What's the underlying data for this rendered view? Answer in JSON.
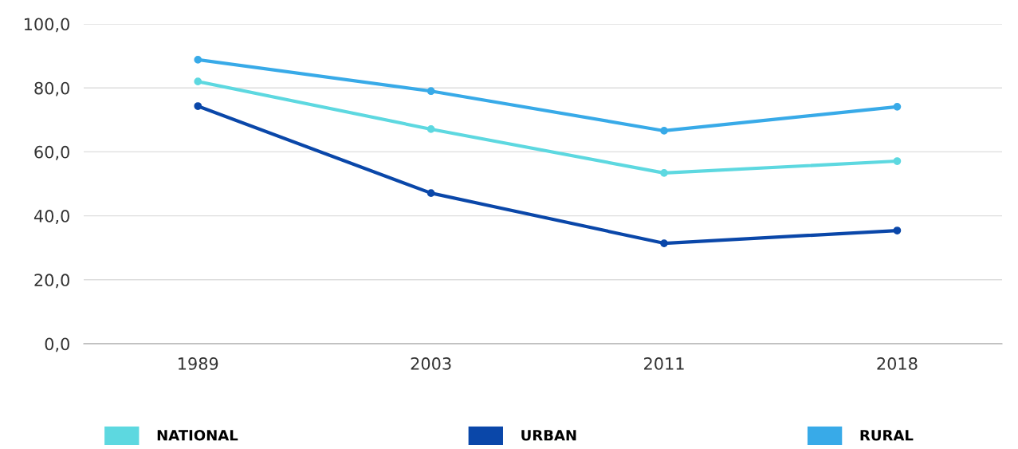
{
  "chart_data": {
    "type": "line",
    "categories": [
      "1989",
      "2003",
      "2011",
      "2018"
    ],
    "series": [
      {
        "name": "NATIONAL",
        "color": "#5dd8e0",
        "values": [
          82.0,
          67.1,
          53.4,
          57.1
        ]
      },
      {
        "name": "URBAN",
        "color": "#0a47a9",
        "values": [
          74.3,
          47.1,
          31.4,
          35.4
        ]
      },
      {
        "name": "RURAL",
        "color": "#38aae8",
        "values": [
          88.8,
          79.0,
          66.6,
          74.1
        ]
      }
    ],
    "ylim": [
      0,
      100
    ],
    "yticks": [
      {
        "value": 0,
        "label": "0,0"
      },
      {
        "value": 20,
        "label": "20,0"
      },
      {
        "value": 40,
        "label": "40,0"
      },
      {
        "value": 60,
        "label": "60,0"
      },
      {
        "value": 80,
        "label": "80,0"
      },
      {
        "value": 100,
        "label": "100,0"
      }
    ],
    "grid": "y",
    "legend": "bottom",
    "marker": "circle",
    "line_style": "solid"
  }
}
